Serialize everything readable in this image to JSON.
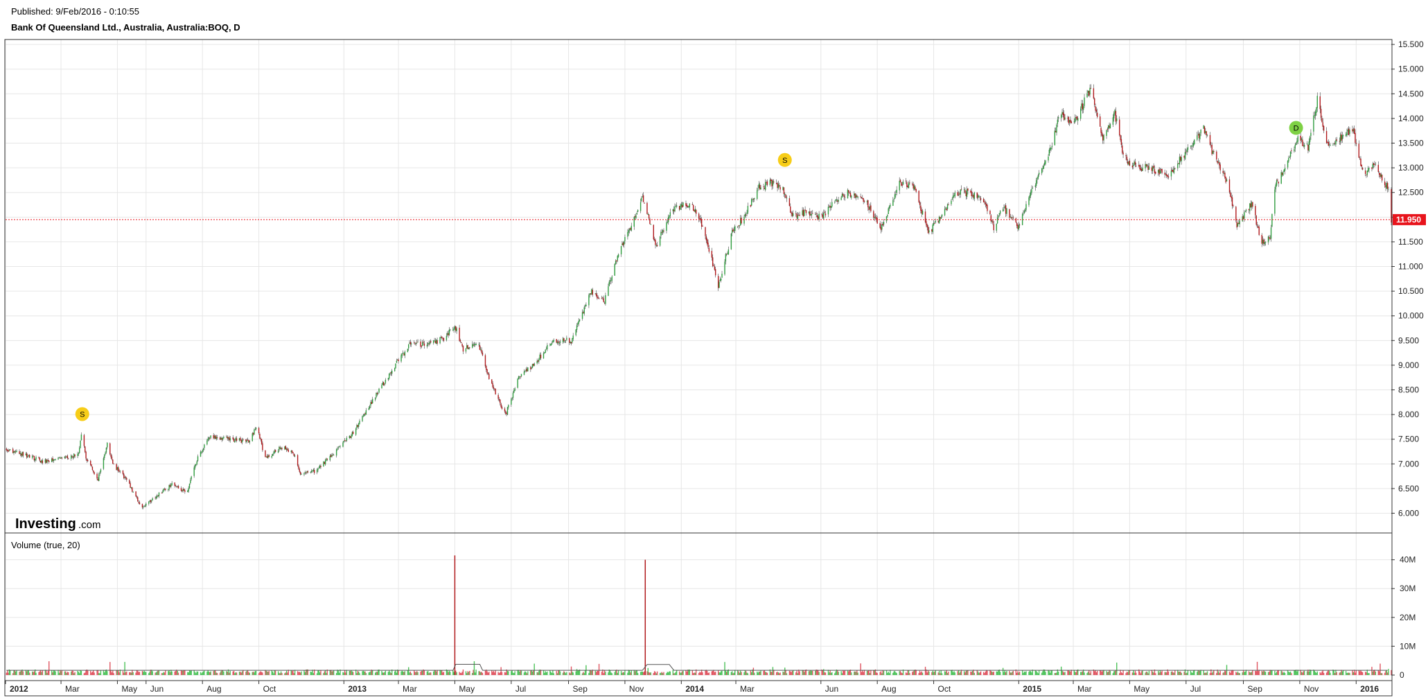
{
  "header": {
    "published": "Published: 9/Feb/2016 - 0:10:55",
    "instrument": "Bank Of Queensland Ltd., Australia, Australia:BOQ, D"
  },
  "branding": {
    "logo_main": "Investing",
    "logo_suffix": ".com"
  },
  "volume_panel": {
    "title": "Volume (true, 20)"
  },
  "colors": {
    "up": "#2e9c3e",
    "down": "#b0191c",
    "vol_up": "#4dc25a",
    "vol_down": "#e05561",
    "last_price": "#e8141c",
    "event_split": "#f7cd18",
    "event_dividend": "#7ed144",
    "grid": "#e6e6e6",
    "frame": "#333333",
    "vol_ma": "#555555"
  },
  "chart_data": {
    "type": "candlestick",
    "x_axis": {
      "range": [
        "2012-01-01",
        "2016-02-08"
      ],
      "ticks": [
        {
          "date": "2012-01-01",
          "label": "2012",
          "major": true
        },
        {
          "date": "2012-03-01",
          "label": "Mar"
        },
        {
          "date": "2012-05-01",
          "label": "May"
        },
        {
          "date": "2012-06-01",
          "label": "Jun"
        },
        {
          "date": "2012-08-01",
          "label": "Aug"
        },
        {
          "date": "2012-10-01",
          "label": "Oct"
        },
        {
          "date": "2013-01-01",
          "label": "2013",
          "major": true
        },
        {
          "date": "2013-03-01",
          "label": "Mar"
        },
        {
          "date": "2013-05-01",
          "label": "May"
        },
        {
          "date": "2013-07-01",
          "label": "Jul"
        },
        {
          "date": "2013-09-01",
          "label": "Sep"
        },
        {
          "date": "2013-11-01",
          "label": "Nov"
        },
        {
          "date": "2014-01-01",
          "label": "2014",
          "major": true
        },
        {
          "date": "2014-03-01",
          "label": "Mar"
        },
        {
          "date": "2014-06-01",
          "label": "Jun"
        },
        {
          "date": "2014-08-01",
          "label": "Aug"
        },
        {
          "date": "2014-10-01",
          "label": "Oct"
        },
        {
          "date": "2015-01-01",
          "label": "2015",
          "major": true
        },
        {
          "date": "2015-03-01",
          "label": "Mar"
        },
        {
          "date": "2015-05-01",
          "label": "May"
        },
        {
          "date": "2015-07-01",
          "label": "Jul"
        },
        {
          "date": "2015-09-01",
          "label": "Sep"
        },
        {
          "date": "2015-11-01",
          "label": "Nov"
        },
        {
          "date": "2016-01-01",
          "label": "2016",
          "major": true
        }
      ]
    },
    "price_axis": {
      "range": [
        5.6,
        15.6
      ],
      "ticks": [
        "6.000",
        "6.500",
        "7.000",
        "7.500",
        "8.000",
        "8.500",
        "9.000",
        "9.500",
        "10.000",
        "10.500",
        "11.000",
        "11.500",
        "12.000",
        "12.500",
        "13.000",
        "13.500",
        "14.000",
        "14.500",
        "15.000",
        "15.500"
      ]
    },
    "volume_axis": {
      "range": [
        0,
        44000000
      ],
      "ticks": [
        {
          "value": 0,
          "label": "0"
        },
        {
          "value": 10000000,
          "label": "10M"
        },
        {
          "value": 20000000,
          "label": "20M"
        },
        {
          "value": 30000000,
          "label": "30M"
        },
        {
          "value": 40000000,
          "label": "40M"
        }
      ]
    },
    "last_price": {
      "value": 11.95,
      "label": "11.950"
    },
    "price_path": [
      [
        "2012-01-01",
        7.3
      ],
      [
        "2012-01-20",
        7.2
      ],
      [
        "2012-02-10",
        7.05
      ],
      [
        "2012-03-01",
        7.1
      ],
      [
        "2012-03-20",
        7.2
      ],
      [
        "2012-03-24",
        7.7
      ],
      [
        "2012-03-28",
        7.1
      ],
      [
        "2012-04-10",
        6.7
      ],
      [
        "2012-04-20",
        7.4
      ],
      [
        "2012-04-26",
        7.0
      ],
      [
        "2012-05-10",
        6.7
      ],
      [
        "2012-05-28",
        6.1
      ],
      [
        "2012-06-15",
        6.4
      ],
      [
        "2012-07-01",
        6.6
      ],
      [
        "2012-07-15",
        6.4
      ],
      [
        "2012-07-28",
        7.2
      ],
      [
        "2012-08-10",
        7.55
      ],
      [
        "2012-09-01",
        7.5
      ],
      [
        "2012-09-20",
        7.45
      ],
      [
        "2012-09-29",
        7.75
      ],
      [
        "2012-10-08",
        7.1
      ],
      [
        "2012-10-25",
        7.35
      ],
      [
        "2012-11-08",
        7.2
      ],
      [
        "2012-11-15",
        6.8
      ],
      [
        "2012-12-01",
        6.85
      ],
      [
        "2012-12-20",
        7.2
      ],
      [
        "2013-01-10",
        7.6
      ],
      [
        "2013-02-05",
        8.4
      ],
      [
        "2013-02-25",
        9.0
      ],
      [
        "2013-03-15",
        9.45
      ],
      [
        "2013-04-01",
        9.4
      ],
      [
        "2013-04-20",
        9.55
      ],
      [
        "2013-05-01",
        9.8
      ],
      [
        "2013-05-10",
        9.3
      ],
      [
        "2013-05-25",
        9.5
      ],
      [
        "2013-06-10",
        8.6
      ],
      [
        "2013-06-25",
        8.0
      ],
      [
        "2013-07-10",
        8.8
      ],
      [
        "2013-07-25",
        9.0
      ],
      [
        "2013-08-15",
        9.5
      ],
      [
        "2013-09-05",
        9.5
      ],
      [
        "2013-09-25",
        10.5
      ],
      [
        "2013-10-10",
        10.3
      ],
      [
        "2013-10-25",
        11.3
      ],
      [
        "2013-11-10",
        11.9
      ],
      [
        "2013-11-20",
        12.4
      ],
      [
        "2013-12-05",
        11.4
      ],
      [
        "2013-12-20",
        12.1
      ],
      [
        "2014-01-10",
        12.3
      ],
      [
        "2014-01-25",
        11.8
      ],
      [
        "2014-02-10",
        10.6
      ],
      [
        "2014-02-25",
        11.7
      ],
      [
        "2014-03-10",
        12.0
      ],
      [
        "2014-03-25",
        12.6
      ],
      [
        "2014-04-10",
        12.7
      ],
      [
        "2014-04-20",
        12.6
      ],
      [
        "2014-05-01",
        12.0
      ],
      [
        "2014-05-15",
        12.1
      ],
      [
        "2014-06-01",
        12.0
      ],
      [
        "2014-06-15",
        12.3
      ],
      [
        "2014-07-01",
        12.5
      ],
      [
        "2014-07-20",
        12.3
      ],
      [
        "2014-08-05",
        11.8
      ],
      [
        "2014-08-25",
        12.7
      ],
      [
        "2014-09-10",
        12.6
      ],
      [
        "2014-09-25",
        11.7
      ],
      [
        "2014-10-10",
        12.0
      ],
      [
        "2014-10-25",
        12.5
      ],
      [
        "2014-11-10",
        12.5
      ],
      [
        "2014-11-25",
        12.3
      ],
      [
        "2014-12-05",
        11.8
      ],
      [
        "2014-12-15",
        12.2
      ],
      [
        "2015-01-01",
        11.8
      ],
      [
        "2015-01-15",
        12.5
      ],
      [
        "2015-02-01",
        13.2
      ],
      [
        "2015-02-15",
        14.1
      ],
      [
        "2015-03-01",
        13.9
      ],
      [
        "2015-03-20",
        14.6
      ],
      [
        "2015-04-01",
        13.6
      ],
      [
        "2015-04-15",
        14.1
      ],
      [
        "2015-04-25",
        13.2
      ],
      [
        "2015-05-10",
        13.0
      ],
      [
        "2015-05-25",
        13.0
      ],
      [
        "2015-06-10",
        12.8
      ],
      [
        "2015-06-25",
        13.2
      ],
      [
        "2015-07-10",
        13.5
      ],
      [
        "2015-07-20",
        13.8
      ],
      [
        "2015-08-01",
        13.2
      ],
      [
        "2015-08-15",
        12.7
      ],
      [
        "2015-08-25",
        11.8
      ],
      [
        "2015-09-10",
        12.3
      ],
      [
        "2015-09-20",
        11.5
      ],
      [
        "2015-09-30",
        11.6
      ],
      [
        "2015-10-05",
        12.6
      ],
      [
        "2015-10-15",
        13.0
      ],
      [
        "2015-10-30",
        13.6
      ],
      [
        "2015-11-10",
        13.4
      ],
      [
        "2015-11-20",
        14.4
      ],
      [
        "2015-12-01",
        13.5
      ],
      [
        "2015-12-15",
        13.6
      ],
      [
        "2015-12-28",
        13.8
      ],
      [
        "2016-01-10",
        12.8
      ],
      [
        "2016-01-20",
        13.1
      ],
      [
        "2016-01-28",
        12.8
      ],
      [
        "2016-02-05",
        12.6
      ],
      [
        "2016-02-08",
        11.95
      ]
    ],
    "volume_spikes": [
      {
        "date": "2013-05-01",
        "value": 41500000
      },
      {
        "date": "2013-11-23",
        "value": 40000000
      }
    ],
    "volume_baseline": 1500000,
    "events": [
      {
        "date": "2012-03-24",
        "price": 7.7,
        "label": "S",
        "kind": "split"
      },
      {
        "date": "2014-04-23",
        "price": 12.85,
        "label": "S",
        "kind": "split"
      },
      {
        "date": "2015-10-28",
        "price": 13.5,
        "label": "D",
        "kind": "dividend"
      }
    ]
  }
}
